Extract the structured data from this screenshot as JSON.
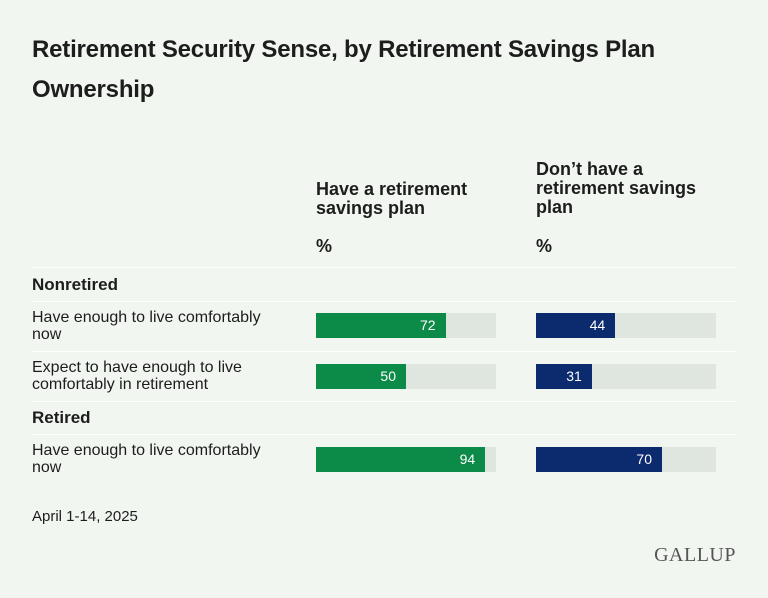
{
  "title": "Retirement Security Sense, by Retirement Savings Plan Ownership",
  "columns": [
    {
      "label": "Have a retirement savings plan",
      "unit": "%"
    },
    {
      "label": "Don’t have a retirement savings plan",
      "unit": "%"
    }
  ],
  "colors": {
    "have_plan": "#0c8a48",
    "no_plan": "#0c2a6e",
    "track": "#dfe6df"
  },
  "groups": [
    {
      "label": "Nonretired",
      "rows": [
        {
          "label": "Have enough to live comfortably now",
          "values": [
            72,
            44
          ]
        },
        {
          "label": "Expect to have enough to live comfortably in retirement",
          "values": [
            50,
            31
          ]
        }
      ]
    },
    {
      "label": "Retired",
      "rows": [
        {
          "label": "Have enough to live comfortably now",
          "values": [
            94,
            70
          ]
        }
      ]
    }
  ],
  "footer": {
    "date": "April 1-14, 2025",
    "source": "GALLUP"
  },
  "chart_data": {
    "type": "bar",
    "title": "Retirement Security Sense, by Retirement Savings Plan Ownership",
    "categories": [
      "Nonretired: Have enough to live comfortably now",
      "Nonretired: Expect to have enough to live comfortably in retirement",
      "Retired: Have enough to live comfortably now"
    ],
    "series": [
      {
        "name": "Have a retirement savings plan",
        "values": [
          72,
          50,
          94
        ]
      },
      {
        "name": "Don’t have a retirement savings plan",
        "values": [
          44,
          31,
          70
        ]
      }
    ],
    "ylim": [
      0,
      100
    ]
  }
}
